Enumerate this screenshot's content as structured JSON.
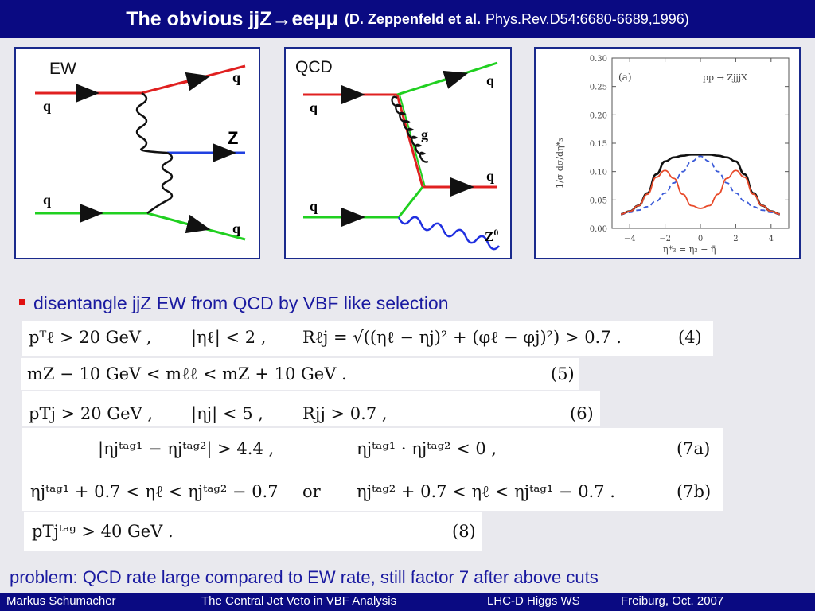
{
  "title": {
    "main": "The obvious  jjZ→eeμμ",
    "ref": "(D. Zeppenfeld et al.",
    "journal": "Phys.Rev.D54:6680-6689,1996)"
  },
  "panels": {
    "ew": {
      "label": "EW",
      "q1": "q",
      "q2": "q",
      "q3": "q",
      "q4": "q",
      "z": "Z"
    },
    "qcd": {
      "label": "QCD",
      "q1": "q",
      "q2": "q",
      "q3": "q",
      "q4": "q",
      "g": "g",
      "z0": "Z",
      "z0_sup": "0"
    },
    "plot": {
      "panel_label": "(a)",
      "process": "pp → ZjjjX",
      "ylabel": "1/σ  dσ/dη*₃",
      "xlabel": "η*₃ = η₃ − η̄"
    }
  },
  "chart_data": {
    "type": "line",
    "title": "",
    "panel_label": "(a)",
    "process": "pp → ZjjjX",
    "xlabel": "η*₃ = η₃ − η̄",
    "ylabel": "1/σ  dσ/dη*₃",
    "xlim": [
      -5,
      5
    ],
    "ylim": [
      0,
      0.3
    ],
    "xticks": [
      -4,
      -2,
      0,
      2,
      4
    ],
    "yticks": [
      0.0,
      0.05,
      0.1,
      0.15,
      0.2,
      0.25,
      0.3
    ],
    "series": [
      {
        "color": "#111111",
        "dash": false,
        "x": [
          -4.5,
          -4.0,
          -3.5,
          -3.0,
          -2.5,
          -2.0,
          -1.5,
          -1.0,
          -0.5,
          0.0,
          0.5,
          1.0,
          1.5,
          2.0,
          2.5,
          3.0,
          3.5,
          4.0,
          4.5
        ],
        "y": [
          0.025,
          0.03,
          0.04,
          0.062,
          0.095,
          0.118,
          0.125,
          0.128,
          0.13,
          0.13,
          0.13,
          0.128,
          0.125,
          0.118,
          0.095,
          0.062,
          0.04,
          0.03,
          0.025
        ]
      },
      {
        "color": "#3a5ad8",
        "dash": true,
        "x": [
          -4.5,
          -4.0,
          -3.5,
          -3.0,
          -2.5,
          -2.0,
          -1.5,
          -1.0,
          -0.5,
          0.0,
          0.5,
          1.0,
          1.5,
          2.0,
          2.5,
          3.0,
          3.5,
          4.0,
          4.5
        ],
        "y": [
          0.025,
          0.028,
          0.032,
          0.038,
          0.048,
          0.062,
          0.08,
          0.1,
          0.118,
          0.127,
          0.118,
          0.1,
          0.08,
          0.062,
          0.048,
          0.038,
          0.032,
          0.028,
          0.025
        ]
      },
      {
        "color": "#e84a2a",
        "dash": false,
        "x": [
          -4.5,
          -4.0,
          -3.5,
          -3.0,
          -2.5,
          -2.0,
          -1.5,
          -1.0,
          -0.5,
          0.0,
          0.5,
          1.0,
          1.5,
          2.0,
          2.5,
          3.0,
          3.5,
          4.0,
          4.5
        ],
        "y": [
          0.025,
          0.03,
          0.04,
          0.06,
          0.09,
          0.102,
          0.088,
          0.06,
          0.04,
          0.035,
          0.04,
          0.06,
          0.088,
          0.102,
          0.09,
          0.06,
          0.04,
          0.03,
          0.025
        ]
      }
    ]
  },
  "bullet": "disentangle jjZ EW from QCD by VBF like selection",
  "equations": {
    "eq4": {
      "a": "pᵀℓ > 20 GeV ,",
      "b": "|ηℓ| < 2 ,",
      "c": "Rℓj = √((ηℓ − ηj)² + (φℓ − φj)²) > 0.7 .",
      "num": "(4)"
    },
    "eq5": {
      "a": "mZ − 10 GeV  <  mℓℓ  <  mZ + 10 GeV .",
      "num": "(5)"
    },
    "eq6": {
      "a": "pTj > 20 GeV ,",
      "b": "|ηj| < 5 ,",
      "c": "Rjj > 0.7 ,",
      "num": "(6)"
    },
    "eq7a": {
      "a": "|ηjᵗᵃᵍ¹ − ηjᵗᵃᵍ²| > 4.4 ,",
      "b": "ηjᵗᵃᵍ¹ · ηjᵗᵃᵍ² < 0 ,",
      "num": "(7a)"
    },
    "eq7b": {
      "a": "ηjᵗᵃᵍ¹ + 0.7 < ηℓ < ηjᵗᵃᵍ² − 0.7",
      "or": "or",
      "b": "ηjᵗᵃᵍ² + 0.7 < ηℓ < ηjᵗᵃᵍ¹ − 0.7 .",
      "num": "(7b)"
    },
    "eq8": {
      "a": "pTjᵗᵃᵍ > 40 GeV .",
      "num": "(8)"
    }
  },
  "problem": "problem: QCD rate large compared to EW rate, still factor 7 after above cuts",
  "footer": {
    "author": "Markus  Schumacher",
    "talk": "The Central Jet Veto in VBF Analysis",
    "event": "LHC-D Higgs WS",
    "place": "Freiburg, Oct. 2007"
  }
}
